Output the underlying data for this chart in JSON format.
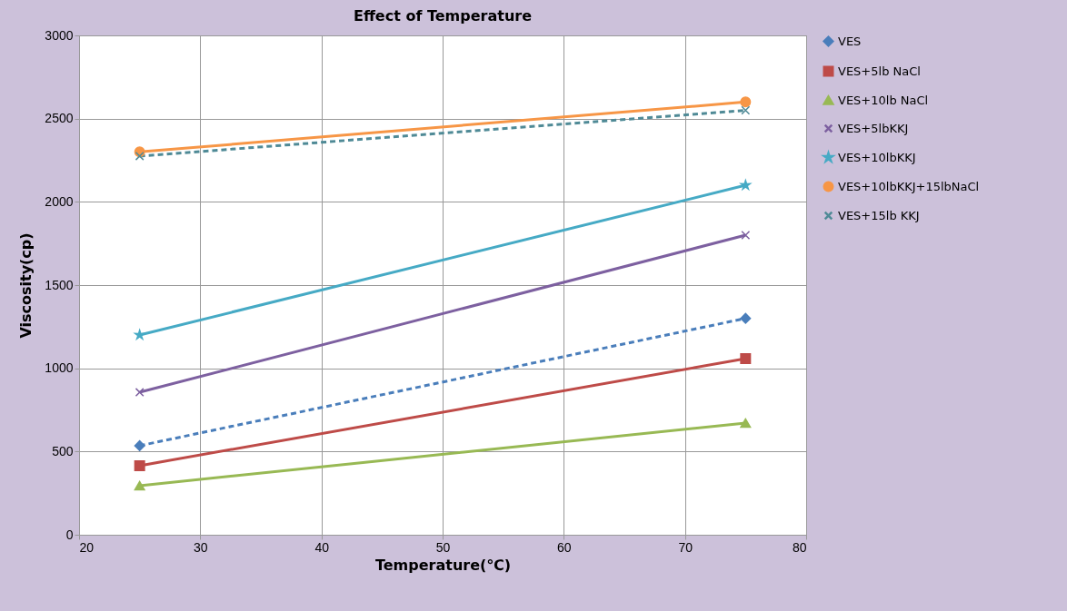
{
  "chart_data": {
    "type": "line",
    "title": "Effect of Temperature",
    "xlabel": "Temperature(℃)",
    "ylabel": "Viscosity(cp)",
    "x": [
      25,
      75
    ],
    "xlim": [
      20,
      80
    ],
    "xticks": [
      20,
      30,
      40,
      50,
      60,
      70,
      80
    ],
    "ylim": [
      0,
      3000
    ],
    "yticks": [
      0,
      500,
      1000,
      1500,
      2000,
      2500,
      3000
    ],
    "grid": true,
    "legend": "right",
    "series": [
      {
        "name": "VES",
        "color": "#4a7ebb",
        "values": [
          535,
          1300
        ],
        "marker": "diamond",
        "line_style": "dashed"
      },
      {
        "name": "VES+5lb NaCl",
        "color": "#be4b48",
        "values": [
          415,
          1058
        ],
        "marker": "square",
        "line_style": "solid"
      },
      {
        "name": "VES+10lb NaCl",
        "color": "#98b954",
        "values": [
          295,
          671
        ],
        "marker": "triangle",
        "line_style": "solid"
      },
      {
        "name": "VES+5lbKKJ",
        "color": "#7d60a0",
        "values": [
          856,
          1800
        ],
        "marker": "cross",
        "line_style": "solid"
      },
      {
        "name": "VES+10lbKKJ",
        "color": "#46aac5",
        "values": [
          1200,
          2100
        ],
        "marker": "star",
        "line_style": "solid"
      },
      {
        "name": "VES+10lbKKJ+15lbNaCl",
        "color": "#f79646",
        "values": [
          2300,
          2600
        ],
        "marker": "circle",
        "line_style": "solid"
      },
      {
        "name": "VES+15lb KKJ",
        "color": "#4f8a96",
        "values": [
          2275,
          2550
        ],
        "marker": "cross",
        "line_style": "dashed"
      }
    ]
  }
}
